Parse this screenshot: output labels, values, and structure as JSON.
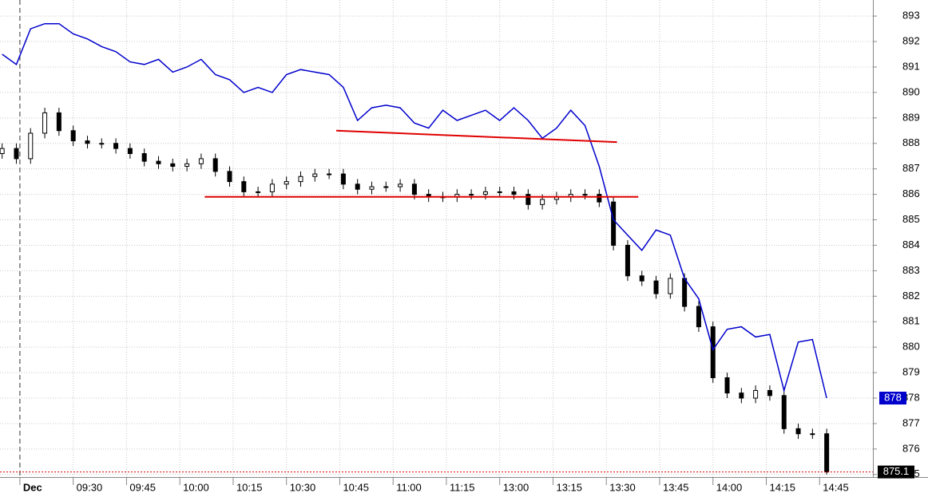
{
  "chart_data": {
    "type": "candlestick",
    "x": [
      -5,
      -1,
      3,
      7,
      11,
      15,
      19,
      23,
      27,
      31,
      35,
      39,
      43,
      47,
      51,
      55,
      59,
      63,
      67,
      71,
      75,
      79,
      83,
      87,
      91,
      95,
      99,
      103,
      107,
      111,
      115,
      119,
      123,
      127,
      131,
      135,
      139,
      143,
      147,
      151,
      155,
      159,
      163,
      167,
      171,
      175,
      179,
      183,
      187,
      191,
      195,
      199,
      203,
      207,
      211,
      215,
      219,
      223,
      227
    ],
    "series": [
      {
        "type": "candlestick",
        "color_up": "#ffffff",
        "color_down": "#000000",
        "open": [
          887.6,
          887.8,
          887.4,
          888.4,
          889.2,
          888.5,
          888.1,
          888.0,
          888.0,
          887.8,
          887.6,
          887.3,
          887.2,
          887.1,
          887.2,
          887.4,
          886.9,
          886.5,
          886.1,
          886.1,
          886.4,
          886.5,
          886.7,
          886.8,
          886.8,
          886.4,
          886.2,
          886.3,
          886.3,
          886.4,
          886.0,
          885.9,
          885.9,
          886.0,
          886.0,
          886.1,
          886.1,
          886.0,
          885.6,
          885.8,
          885.9,
          886.0,
          886.0,
          885.7,
          884.0,
          882.8,
          882.6,
          882.1,
          882.7,
          881.6,
          880.8,
          878.8,
          878.2,
          878.0,
          878.3,
          878.1,
          876.8,
          876.6,
          876.6
        ],
        "high": [
          888.0,
          888.0,
          888.6,
          889.4,
          889.4,
          888.7,
          888.3,
          888.2,
          888.2,
          888.0,
          887.8,
          887.5,
          887.4,
          887.4,
          887.6,
          887.6,
          887.1,
          886.7,
          886.3,
          886.6,
          886.7,
          886.9,
          887.0,
          887.0,
          887.0,
          886.6,
          886.5,
          886.5,
          886.6,
          886.6,
          886.2,
          886.1,
          886.2,
          886.2,
          886.3,
          886.3,
          886.3,
          886.2,
          886.0,
          886.1,
          886.2,
          886.2,
          886.2,
          885.9,
          884.2,
          883.0,
          882.8,
          882.9,
          882.9,
          881.8,
          881.0,
          879.0,
          878.4,
          878.5,
          878.5,
          878.3,
          877.0,
          876.8,
          876.8
        ],
        "low": [
          887.4,
          887.2,
          887.2,
          888.2,
          888.3,
          887.9,
          887.8,
          887.8,
          887.6,
          887.4,
          887.1,
          887.0,
          886.9,
          886.9,
          887.0,
          886.7,
          886.3,
          885.9,
          885.9,
          885.9,
          886.2,
          886.3,
          886.5,
          886.6,
          886.2,
          886.0,
          886.0,
          886.1,
          886.1,
          885.8,
          885.7,
          885.7,
          885.7,
          885.8,
          885.8,
          885.9,
          885.8,
          885.4,
          885.4,
          885.6,
          885.7,
          885.8,
          885.5,
          883.8,
          882.6,
          882.4,
          881.9,
          881.9,
          881.4,
          880.6,
          878.6,
          878.0,
          877.8,
          877.8,
          877.9,
          876.6,
          876.4,
          876.4,
          875.0
        ],
        "close": [
          887.8,
          887.4,
          888.4,
          889.2,
          888.5,
          888.1,
          888.0,
          888.0,
          887.8,
          887.6,
          887.3,
          887.2,
          887.1,
          887.2,
          887.4,
          886.9,
          886.5,
          886.1,
          886.1,
          886.4,
          886.5,
          886.7,
          886.8,
          886.8,
          886.4,
          886.2,
          886.3,
          886.3,
          886.4,
          886.0,
          885.9,
          885.9,
          886.0,
          886.0,
          886.1,
          886.1,
          886.0,
          885.6,
          885.8,
          885.9,
          886.0,
          886.0,
          885.7,
          884.0,
          882.8,
          882.6,
          882.1,
          882.7,
          881.6,
          880.8,
          878.8,
          878.2,
          878.0,
          878.3,
          878.1,
          876.8,
          876.6,
          876.6,
          875.1
        ]
      },
      {
        "type": "line",
        "color": "#0000cc",
        "values": [
          891.5,
          891.1,
          892.5,
          892.7,
          892.7,
          892.3,
          892.1,
          891.8,
          891.6,
          891.2,
          891.1,
          891.3,
          890.8,
          891.0,
          891.3,
          890.7,
          890.5,
          890.0,
          890.2,
          890.0,
          890.7,
          890.9,
          890.8,
          890.7,
          890.2,
          888.9,
          889.4,
          889.5,
          889.4,
          888.8,
          888.6,
          889.3,
          888.9,
          889.1,
          889.3,
          888.9,
          889.4,
          888.9,
          888.2,
          888.6,
          889.3,
          888.7,
          887.1,
          885.0,
          884.4,
          883.8,
          884.6,
          884.4,
          882.7,
          881.9,
          879.9,
          880.7,
          880.8,
          880.4,
          880.5,
          878.3,
          880.2,
          880.3,
          878
        ]
      }
    ],
    "lines": [
      {
        "x": [
          89,
          168
        ],
        "y": [
          888.5,
          888.05
        ],
        "color": "#e00000"
      },
      {
        "x": [
          52,
          174
        ],
        "y": [
          885.9,
          885.9
        ],
        "color": "#e00000"
      }
    ],
    "xlim": [
      -5.6,
      240
    ],
    "ylim": [
      874.9,
      893.63
    ],
    "xticks": [
      {
        "value": 0,
        "label": "Dec"
      },
      {
        "value": 15,
        "label": "09:30"
      },
      {
        "value": 30,
        "label": "09:45"
      },
      {
        "value": 45,
        "label": "10:00"
      },
      {
        "value": 60,
        "label": "10:15"
      },
      {
        "value": 75,
        "label": "10:30"
      },
      {
        "value": 90,
        "label": "10:45"
      },
      {
        "value": 105,
        "label": "11:00"
      },
      {
        "value": 120,
        "label": "11:15"
      },
      {
        "value": 135,
        "label": "13:00"
      },
      {
        "value": 150,
        "label": "13:15"
      },
      {
        "value": 165,
        "label": "13:30"
      },
      {
        "value": 180,
        "label": "13:45"
      },
      {
        "value": 195,
        "label": "14:00"
      },
      {
        "value": 210,
        "label": "14:15"
      },
      {
        "value": 225,
        "label": "14:45"
      }
    ],
    "yticks": [
      875,
      876,
      877,
      878,
      879,
      880,
      881,
      882,
      883,
      884,
      885,
      886,
      887,
      888,
      889,
      890,
      891,
      892,
      893
    ],
    "grid": true
  }
}
